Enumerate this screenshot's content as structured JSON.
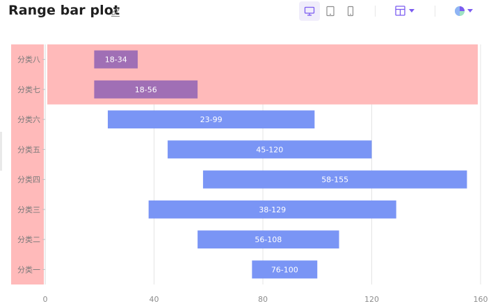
{
  "header": {
    "title": "Range bar plot",
    "edit_icon": "pencil-icon",
    "device_buttons": [
      {
        "name": "desktop-icon",
        "active": true
      },
      {
        "name": "tablet-icon",
        "active": false
      },
      {
        "name": "mobile-icon",
        "active": false
      }
    ],
    "layout_menu_icon": "layout-icon",
    "theme_menu_icon": "theme-color-icon",
    "accent_color": "#7b5cf0"
  },
  "chart_data": {
    "type": "bar",
    "orientation": "horizontal",
    "title": "",
    "xlabel": "",
    "ylabel": "",
    "xlim": [
      0,
      160
    ],
    "x_ticks": [
      0,
      40,
      80,
      120,
      160
    ],
    "x_tick_labels": [
      "0",
      "40",
      "80",
      "120",
      "160"
    ],
    "grid": "vertical",
    "categories": [
      "分类一",
      "分类二",
      "分类三",
      "分类四",
      "分类五",
      "分类六",
      "分类七",
      "分类八"
    ],
    "ranges": [
      [
        76,
        100
      ],
      [
        56,
        108
      ],
      [
        38,
        129
      ],
      [
        58,
        155
      ],
      [
        45,
        120
      ],
      [
        23,
        99
      ],
      [
        18,
        56
      ],
      [
        18,
        34
      ]
    ],
    "labels": [
      "76-100",
      "56-108",
      "38-129",
      "58-155",
      "45-120",
      "23-99",
      "18-56",
      "18-34"
    ],
    "bar_color": "#7a95f5",
    "highlighted_bar_color": "#a06fb5",
    "highlight_color": "#ffbaba",
    "highlighted_categories": [
      "分类七",
      "分类八"
    ]
  }
}
